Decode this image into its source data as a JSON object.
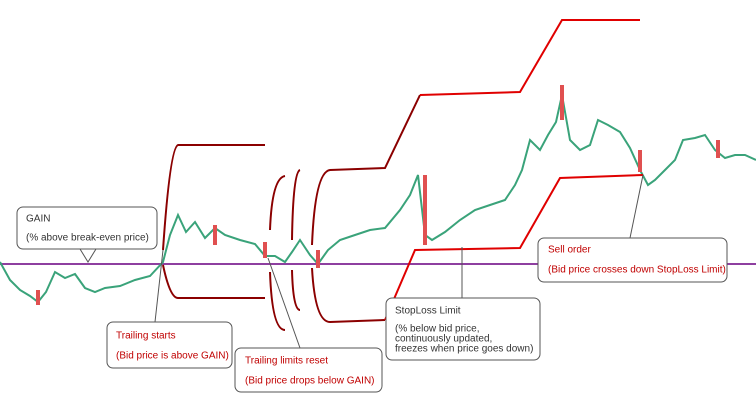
{
  "annotations": {
    "gain": {
      "title": "GAIN",
      "detail": "(% above break-even price)"
    },
    "trailing_starts": {
      "title": "Trailing starts",
      "detail": "(Bid price is above GAIN)"
    },
    "trailing_reset": {
      "title": "Trailing limits reset",
      "detail": "(Bid price drops below GAIN)"
    },
    "stoploss": {
      "title": "StopLoss Limit",
      "detail": [
        "(% below bid price,",
        "continuously updated,",
        "freezes when price goes down)"
      ]
    },
    "sell_order": {
      "title": "Sell order",
      "detail": "(Bid price crosses down StopLoss Limit)"
    }
  }
}
